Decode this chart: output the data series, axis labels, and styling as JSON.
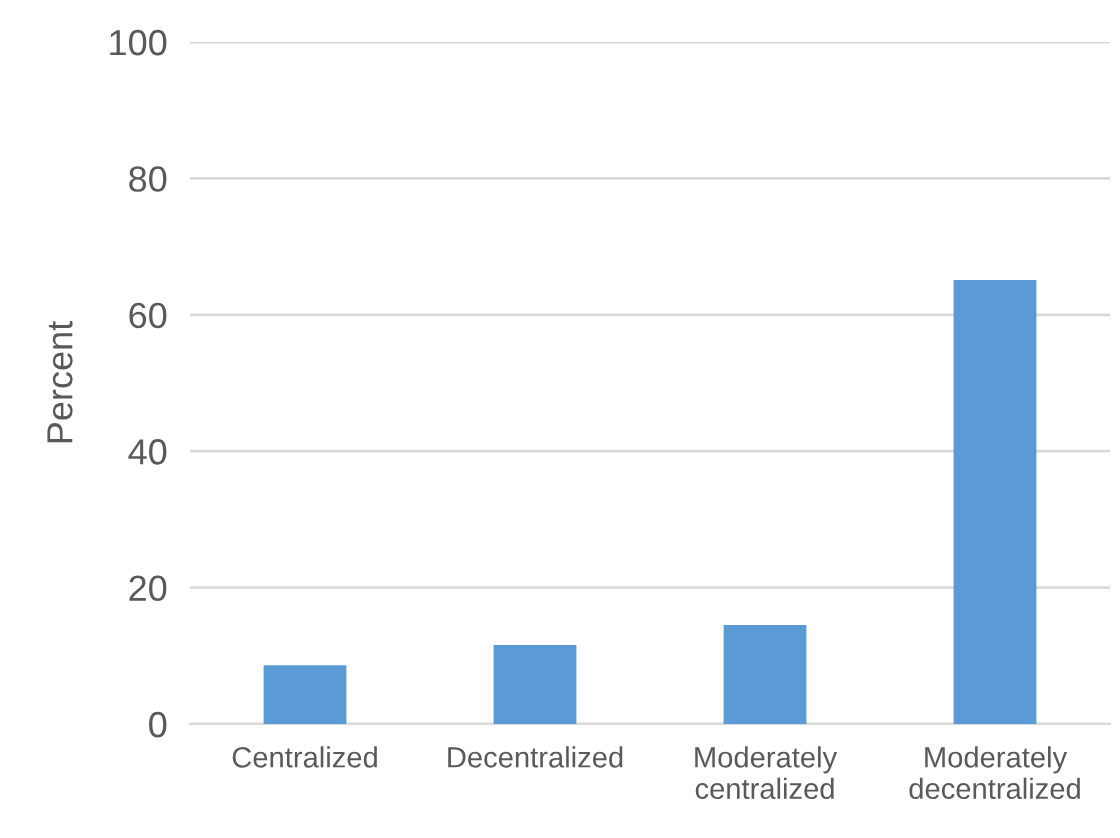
{
  "chart_data": {
    "type": "bar",
    "ylabel": "Percent",
    "categories": [
      "Centralized",
      "Decentralized",
      "Moderately\ncentralized",
      "Moderately\ndecentralized"
    ],
    "values": [
      8.6,
      11.6,
      14.5,
      65.1
    ],
    "color": "#5b9bd5",
    "ylim": [
      0,
      100
    ],
    "yticks": [
      0,
      20,
      40,
      60,
      80,
      100
    ],
    "grid": "y"
  }
}
